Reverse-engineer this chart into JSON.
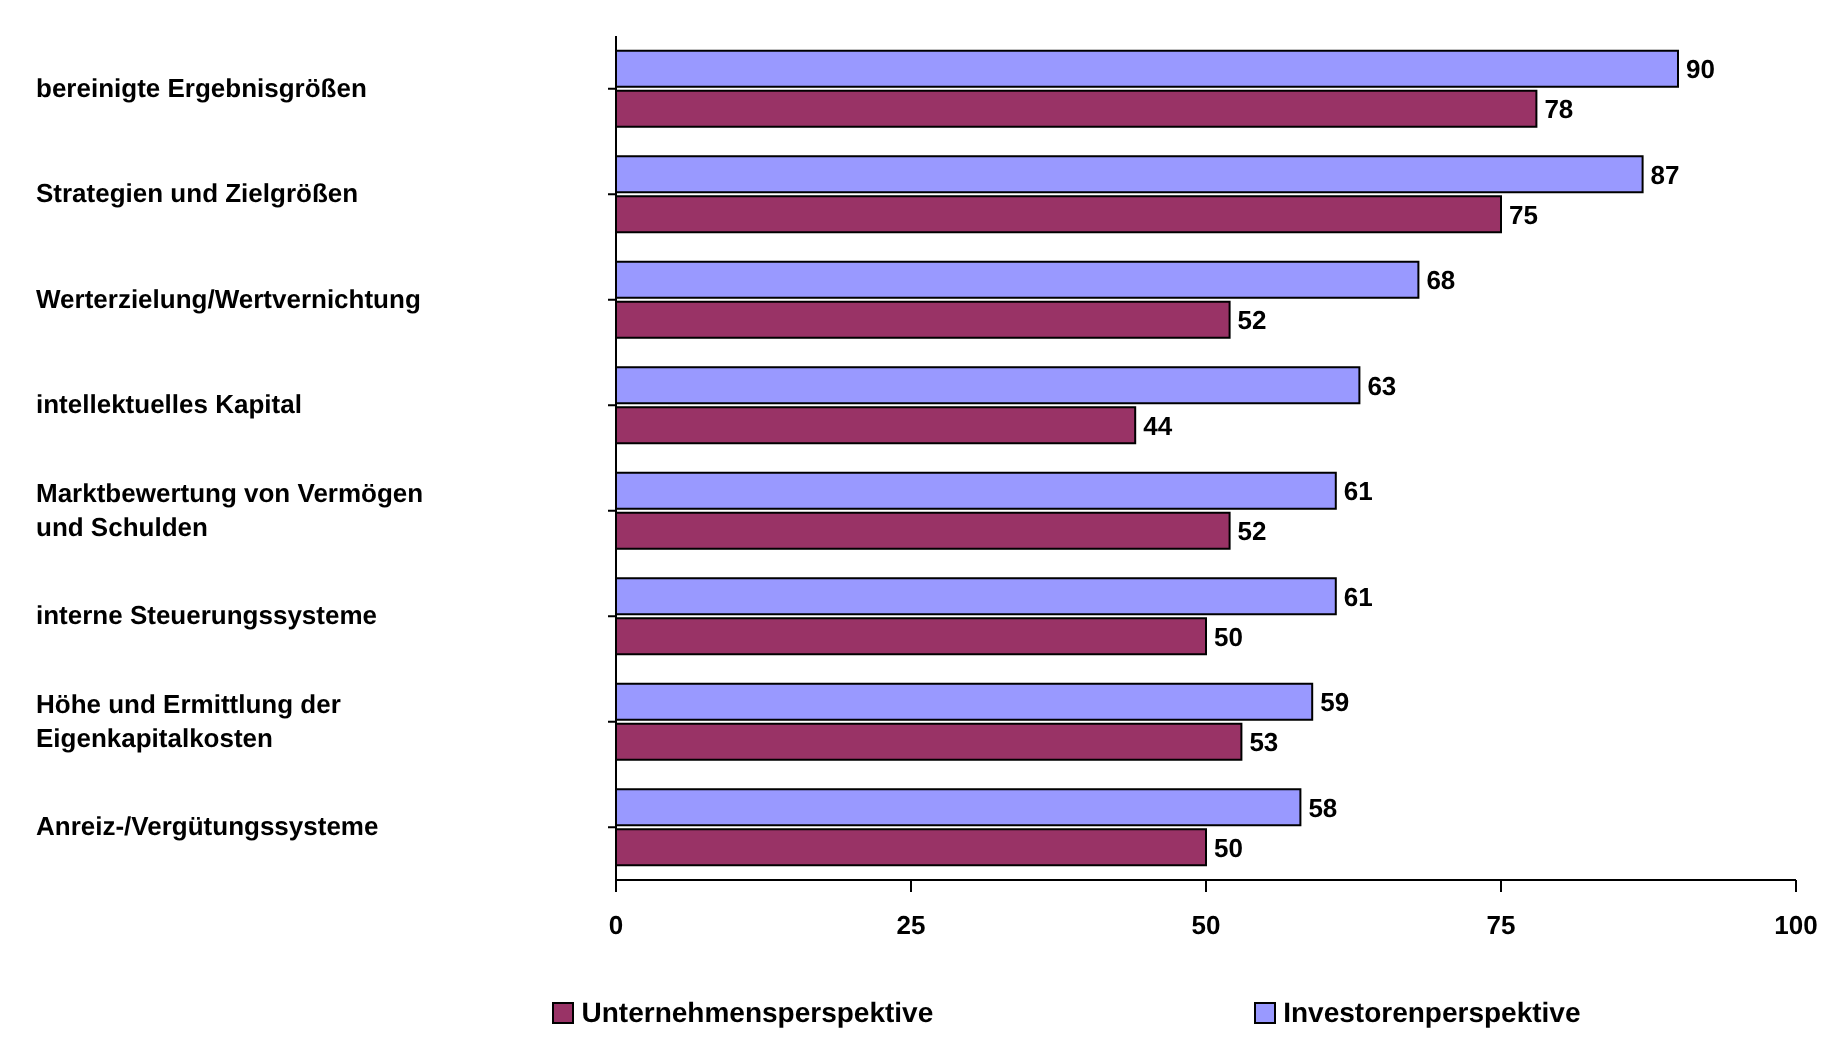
{
  "chart_data": {
    "type": "bar",
    "orientation": "horizontal",
    "categories": [
      "bereinigte Ergebnisgrößen",
      "Strategien und Zielgrößen",
      "Werterzielung/Wertvernichtung",
      "intellektuelles Kapital",
      "Marktbewertung von Vermögen und Schulden",
      "interne Steuerungssysteme",
      "Höhe und Ermittlung der Eigenkapitalkosten",
      "Anreiz-/Vergütungssysteme"
    ],
    "series": [
      {
        "name": "Unternehmensperspektive",
        "color": "#993366",
        "values": [
          78,
          75,
          52,
          44,
          52,
          50,
          53,
          50
        ]
      },
      {
        "name": "Investorenperspektive",
        "color": "#9999ff",
        "values": [
          90,
          87,
          68,
          63,
          61,
          61,
          59,
          58
        ]
      }
    ],
    "xlim": [
      0,
      100
    ],
    "xticks": [
      0,
      25,
      50,
      75,
      100
    ],
    "data_labels": true,
    "grid": false,
    "legend": "bottom"
  }
}
